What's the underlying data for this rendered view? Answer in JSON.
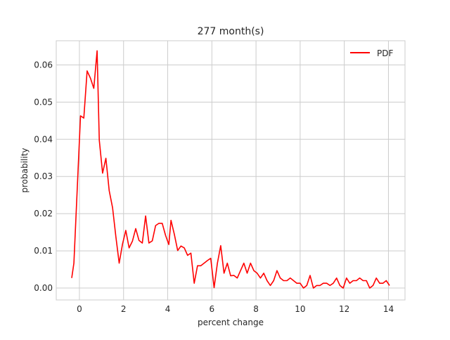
{
  "chart_data": {
    "type": "line",
    "title": "277 month(s)",
    "xlabel": "percent change",
    "ylabel": "probability",
    "xlim": [
      -1.05,
      14.75
    ],
    "ylim": [
      -0.0032,
      0.0665
    ],
    "xticks": [
      0,
      2,
      4,
      6,
      8,
      10,
      12,
      14
    ],
    "yticks": [
      0.0,
      0.01,
      0.02,
      0.03,
      0.04,
      0.05,
      0.06
    ],
    "xtick_labels": [
      "0",
      "2",
      "4",
      "6",
      "8",
      "10",
      "12",
      "14"
    ],
    "ytick_labels": [
      "0.00",
      "0.01",
      "0.02",
      "0.03",
      "0.04",
      "0.05",
      "0.06"
    ],
    "grid": true,
    "legend_position": "top-right",
    "series": [
      {
        "name": "PDF",
        "color": "#ff0000",
        "x": [
          -0.35,
          -0.25,
          -0.1,
          0.05,
          0.2,
          0.35,
          0.5,
          0.65,
          0.8,
          0.9,
          1.05,
          1.2,
          1.35,
          1.5,
          1.65,
          1.8,
          1.95,
          2.1,
          2.25,
          2.4,
          2.55,
          2.7,
          2.85,
          3.0,
          3.15,
          3.3,
          3.45,
          3.6,
          3.75,
          3.9,
          4.05,
          4.15,
          4.3,
          4.45,
          4.6,
          4.75,
          4.9,
          5.05,
          5.2,
          5.35,
          5.5,
          5.65,
          5.8,
          5.95,
          6.1,
          6.25,
          6.4,
          6.55,
          6.7,
          6.85,
          7.0,
          7.15,
          7.3,
          7.45,
          7.6,
          7.75,
          7.9,
          8.05,
          8.2,
          8.35,
          8.5,
          8.65,
          8.8,
          8.95,
          9.1,
          9.25,
          9.4,
          9.55,
          9.7,
          9.85,
          10.0,
          10.15,
          10.3,
          10.45,
          10.6,
          10.75,
          10.9,
          11.05,
          11.2,
          11.35,
          11.5,
          11.65,
          11.8,
          11.95,
          12.1,
          12.25,
          12.4,
          12.55,
          12.7,
          12.85,
          13.0,
          13.15,
          13.3,
          13.45,
          13.6,
          13.75,
          13.9,
          14.05
        ],
        "y": [
          0.0027,
          0.0067,
          0.0265,
          0.0463,
          0.0457,
          0.0584,
          0.0564,
          0.0537,
          0.0638,
          0.0398,
          0.0309,
          0.0349,
          0.0262,
          0.0216,
          0.0138,
          0.0067,
          0.0118,
          0.0155,
          0.0108,
          0.0126,
          0.016,
          0.0128,
          0.0121,
          0.0194,
          0.0121,
          0.0127,
          0.0168,
          0.0174,
          0.0174,
          0.0142,
          0.0117,
          0.0182,
          0.0145,
          0.0101,
          0.0113,
          0.0108,
          0.0088,
          0.0094,
          0.0013,
          0.006,
          0.006,
          0.0067,
          0.0074,
          0.008,
          0.0001,
          0.0067,
          0.0114,
          0.004,
          0.0067,
          0.0033,
          0.0034,
          0.0027,
          0.0047,
          0.0067,
          0.004,
          0.0067,
          0.0047,
          0.004,
          0.0027,
          0.004,
          0.002,
          0.0007,
          0.002,
          0.0047,
          0.0027,
          0.002,
          0.002,
          0.0027,
          0.002,
          0.0013,
          0.0013,
          0.0,
          0.0007,
          0.0034,
          0.0,
          0.0007,
          0.0007,
          0.0013,
          0.0013,
          0.0007,
          0.0013,
          0.0027,
          0.0007,
          0.0,
          0.0027,
          0.0013,
          0.002,
          0.002,
          0.0027,
          0.002,
          0.002,
          0.0,
          0.0007,
          0.0027,
          0.0013,
          0.0013,
          0.002,
          0.0007
        ]
      }
    ]
  }
}
